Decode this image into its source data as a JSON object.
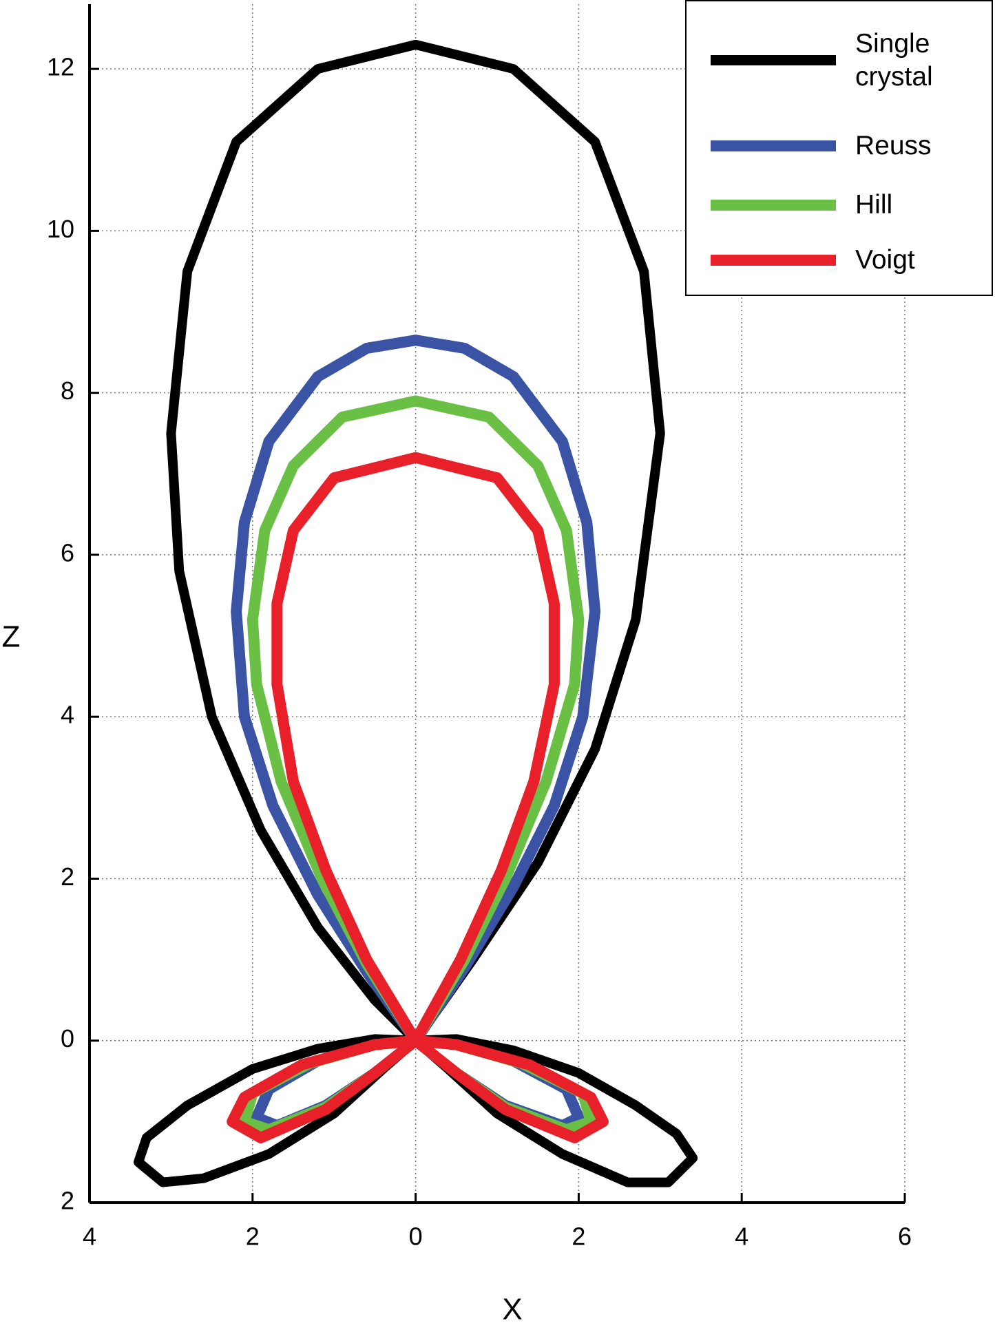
{
  "chart_data": {
    "type": "line",
    "xlabel": "X",
    "ylabel": "Z",
    "xlim": [
      -4,
      6
    ],
    "ylim": [
      -2,
      12.8
    ],
    "xticks": [
      {
        "value": -4,
        "label": "4"
      },
      {
        "value": -2,
        "label": "2"
      },
      0,
      2,
      4,
      6
    ],
    "yticks": [
      {
        "value": -2,
        "label": "2"
      },
      0,
      2,
      4,
      6,
      8,
      10,
      12
    ],
    "grid": true,
    "legend": "upper right",
    "series": [
      {
        "name": "Single crystal",
        "color": "#000000",
        "x": [
          0,
          0.7,
          1.5,
          2.2,
          2.7,
          3.0,
          2.8,
          2.2,
          1.2,
          0,
          -1.2,
          -2.2,
          -2.8,
          -3.0,
          -2.9,
          -2.5,
          -1.9,
          -1.2,
          -0.5,
          0,
          -0.5,
          -1.2,
          -2.0,
          -2.8,
          -3.3,
          -3.4,
          -3.1,
          -2.6,
          -1.8,
          -1.0,
          -0.4,
          0,
          0.4,
          1.0,
          1.8,
          2.6,
          3.1,
          3.4,
          3.2,
          2.7,
          2.0,
          1.2,
          0.5,
          0
        ],
        "values": [
          0,
          1,
          2.2,
          3.6,
          5.2,
          7.5,
          9.5,
          11.1,
          12.0,
          12.3,
          12.0,
          11.1,
          9.5,
          7.5,
          5.8,
          4.0,
          2.6,
          1.4,
          0.5,
          0,
          0.02,
          -0.1,
          -0.35,
          -0.8,
          -1.2,
          -1.5,
          -1.75,
          -1.7,
          -1.4,
          -0.9,
          -0.35,
          0,
          -0.35,
          -0.9,
          -1.4,
          -1.75,
          -1.75,
          -1.45,
          -1.15,
          -0.8,
          -0.4,
          -0.12,
          0.02,
          0
        ]
      },
      {
        "name": "Reuss",
        "color": "#3a53a4",
        "x": [
          0,
          0.6,
          1.2,
          1.7,
          2.05,
          2.2,
          2.1,
          1.8,
          1.2,
          0.6,
          0,
          -0.6,
          -1.2,
          -1.8,
          -2.1,
          -2.2,
          -2.1,
          -1.75,
          -1.2,
          -0.6,
          0,
          -0.5,
          -1.2,
          -1.8,
          -1.95,
          -1.7,
          -1.1,
          -0.5,
          0,
          0.5,
          1.1,
          1.8,
          2.0,
          1.85,
          1.2,
          0.5,
          0
        ],
        "values": [
          0,
          0.9,
          1.9,
          2.9,
          4.0,
          5.3,
          6.4,
          7.4,
          8.2,
          8.55,
          8.65,
          8.55,
          8.2,
          7.4,
          6.4,
          5.3,
          4.0,
          2.9,
          1.8,
          0.85,
          0,
          -0.05,
          -0.25,
          -0.6,
          -0.95,
          -1.05,
          -0.8,
          -0.4,
          0,
          -0.4,
          -0.8,
          -1.05,
          -0.95,
          -0.6,
          -0.25,
          -0.05,
          0
        ]
      },
      {
        "name": "Hill",
        "color": "#6abf45",
        "x": [
          0,
          0.6,
          1.1,
          1.6,
          1.95,
          2.0,
          1.85,
          1.5,
          0.9,
          0,
          -0.9,
          -1.5,
          -1.85,
          -2.0,
          -1.95,
          -1.65,
          -1.15,
          -0.6,
          0,
          -0.5,
          -1.3,
          -2.0,
          -2.1,
          -1.8,
          -1.1,
          -0.5,
          0,
          0.5,
          1.1,
          1.85,
          2.15,
          2.05,
          1.3,
          0.5,
          0
        ],
        "values": [
          0,
          1.0,
          2.0,
          3.2,
          4.4,
          5.2,
          6.3,
          7.1,
          7.7,
          7.9,
          7.7,
          7.1,
          6.3,
          5.2,
          4.4,
          3.2,
          2.0,
          0.95,
          0,
          -0.05,
          -0.28,
          -0.65,
          -1.0,
          -1.1,
          -0.82,
          -0.4,
          0,
          -0.4,
          -0.82,
          -1.1,
          -1.0,
          -0.65,
          -0.28,
          -0.05,
          0
        ]
      },
      {
        "name": "Voigt",
        "color": "#e8202a",
        "x": [
          0,
          0.55,
          1.05,
          1.45,
          1.7,
          1.7,
          1.5,
          1.0,
          0,
          -1.0,
          -1.5,
          -1.7,
          -1.7,
          -1.5,
          -1.1,
          -0.6,
          0,
          -0.5,
          -1.4,
          -2.1,
          -2.25,
          -1.9,
          -1.1,
          -0.5,
          0,
          0.5,
          1.1,
          1.95,
          2.3,
          2.15,
          1.4,
          0.5,
          0
        ],
        "values": [
          0,
          1.0,
          2.1,
          3.2,
          4.4,
          5.4,
          6.3,
          6.95,
          7.2,
          6.95,
          6.3,
          5.4,
          4.4,
          3.2,
          2.1,
          1.0,
          0,
          -0.05,
          -0.3,
          -0.7,
          -1.0,
          -1.2,
          -0.85,
          -0.4,
          0,
          -0.4,
          -0.85,
          -1.2,
          -1.0,
          -0.7,
          -0.3,
          -0.05,
          0
        ]
      }
    ]
  }
}
